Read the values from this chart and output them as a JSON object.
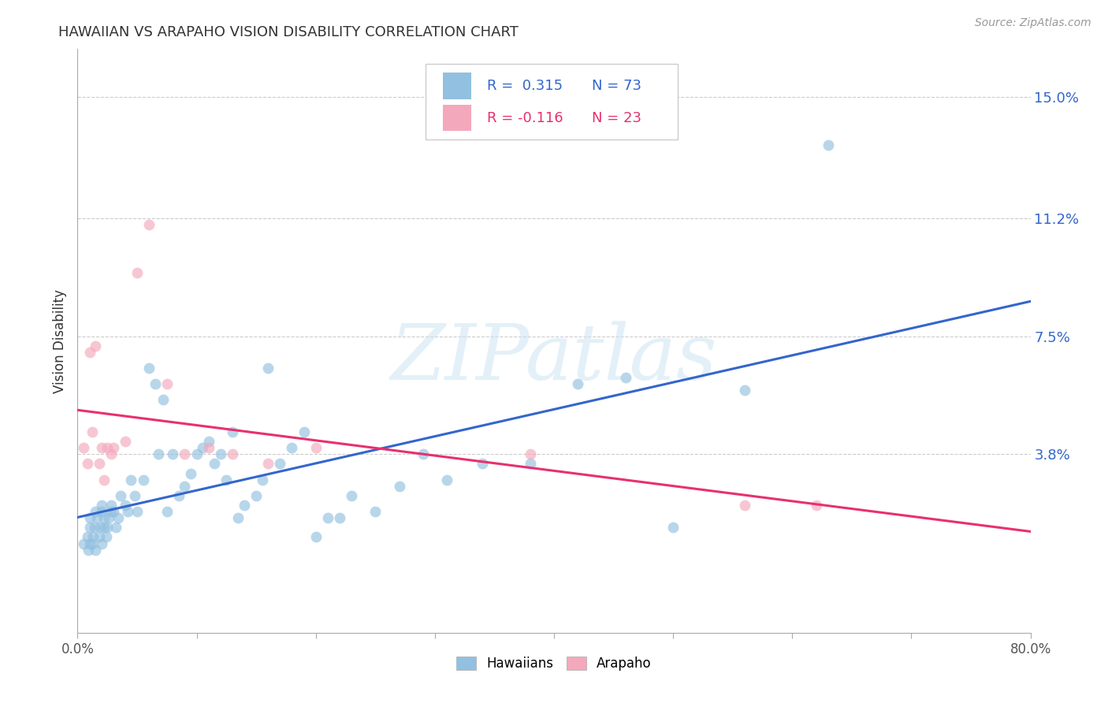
{
  "title": "HAWAIIAN VS ARAPAHO VISION DISABILITY CORRELATION CHART",
  "source": "Source: ZipAtlas.com",
  "ylabel": "Vision Disability",
  "watermark": "ZIPatlas",
  "xlim": [
    0.0,
    0.8
  ],
  "ylim": [
    -0.018,
    0.165
  ],
  "xticks": [
    0.0,
    0.1,
    0.2,
    0.3,
    0.4,
    0.5,
    0.6,
    0.7,
    0.8
  ],
  "xticklabels": [
    "0.0%",
    "",
    "",
    "",
    "",
    "",
    "",
    "",
    "80.0%"
  ],
  "yticks_right": [
    0.038,
    0.075,
    0.112,
    0.15
  ],
  "ytick_labels_right": [
    "3.8%",
    "7.5%",
    "11.2%",
    "15.0%"
  ],
  "hawaiians_color": "#92c0e0",
  "arapaho_color": "#f4a8bc",
  "trendline_hawaiians_color": "#3366cc",
  "trendline_arapaho_color": "#e83070",
  "hawaiians_x": [
    0.005,
    0.008,
    0.009,
    0.01,
    0.01,
    0.01,
    0.012,
    0.013,
    0.014,
    0.015,
    0.015,
    0.016,
    0.018,
    0.019,
    0.02,
    0.02,
    0.02,
    0.022,
    0.022,
    0.024,
    0.025,
    0.026,
    0.028,
    0.028,
    0.03,
    0.032,
    0.034,
    0.036,
    0.04,
    0.042,
    0.045,
    0.048,
    0.05,
    0.055,
    0.06,
    0.065,
    0.068,
    0.072,
    0.075,
    0.08,
    0.085,
    0.09,
    0.095,
    0.1,
    0.105,
    0.11,
    0.115,
    0.12,
    0.125,
    0.13,
    0.135,
    0.14,
    0.15,
    0.155,
    0.16,
    0.17,
    0.18,
    0.19,
    0.2,
    0.21,
    0.22,
    0.23,
    0.25,
    0.27,
    0.29,
    0.31,
    0.34,
    0.38,
    0.42,
    0.46,
    0.5,
    0.56,
    0.63
  ],
  "hawaiians_y": [
    0.01,
    0.012,
    0.008,
    0.01,
    0.015,
    0.018,
    0.01,
    0.012,
    0.015,
    0.008,
    0.02,
    0.018,
    0.012,
    0.015,
    0.01,
    0.02,
    0.022,
    0.015,
    0.018,
    0.012,
    0.015,
    0.018,
    0.02,
    0.022,
    0.02,
    0.015,
    0.018,
    0.025,
    0.022,
    0.02,
    0.03,
    0.025,
    0.02,
    0.03,
    0.065,
    0.06,
    0.038,
    0.055,
    0.02,
    0.038,
    0.025,
    0.028,
    0.032,
    0.038,
    0.04,
    0.042,
    0.035,
    0.038,
    0.03,
    0.045,
    0.018,
    0.022,
    0.025,
    0.03,
    0.065,
    0.035,
    0.04,
    0.045,
    0.012,
    0.018,
    0.018,
    0.025,
    0.02,
    0.028,
    0.038,
    0.03,
    0.035,
    0.035,
    0.06,
    0.062,
    0.015,
    0.058,
    0.135
  ],
  "arapaho_x": [
    0.005,
    0.008,
    0.01,
    0.012,
    0.015,
    0.018,
    0.02,
    0.022,
    0.025,
    0.028,
    0.03,
    0.04,
    0.05,
    0.06,
    0.075,
    0.09,
    0.11,
    0.13,
    0.16,
    0.2,
    0.38,
    0.56,
    0.62
  ],
  "arapaho_y": [
    0.04,
    0.035,
    0.07,
    0.045,
    0.072,
    0.035,
    0.04,
    0.03,
    0.04,
    0.038,
    0.04,
    0.042,
    0.095,
    0.11,
    0.06,
    0.038,
    0.04,
    0.038,
    0.035,
    0.04,
    0.038,
    0.022,
    0.022
  ]
}
